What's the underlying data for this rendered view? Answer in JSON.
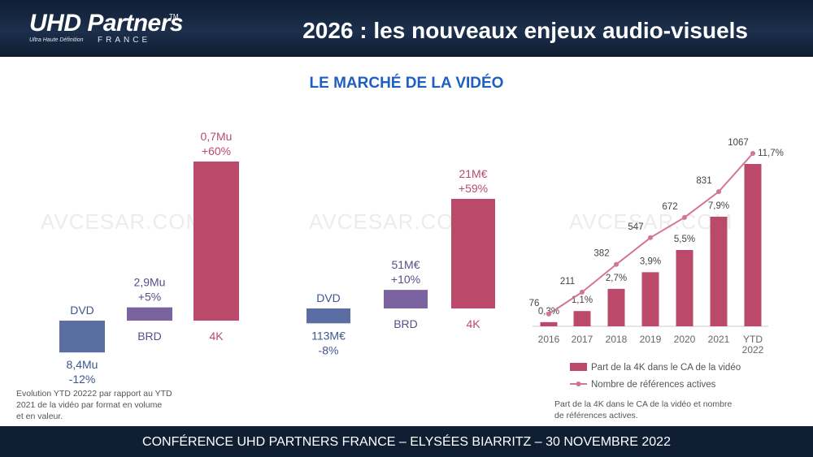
{
  "header": {
    "logo": "UHD Partners",
    "logo_tm": "TM",
    "logo_sub": "Ultra Haute Définition",
    "logo_country": "FRANCE",
    "title": "2026 : les nouveaux enjeux audio-visuels"
  },
  "section_title": "LE MARCHÉ DE LA VIDÉO",
  "watermark": "AVCESAR.COM",
  "footer": "CONFÉRENCE UHD PARTNERS FRANCE – ELYSÉES BIARRITZ – 30 NOVEMBRE 2022",
  "notes": {
    "left_line1": "Evolution YTD 20222  par rapport au YTD",
    "left_line2": "2021 de la vidéo par format en volume",
    "left_line3": "et en valeur.",
    "right_line1": "Part de la 4K dans le CA de la vidéo et nombre",
    "right_line2": "de références actives."
  },
  "colors": {
    "dvd": "#5a6ea3",
    "brd": "#7b63a0",
    "k4": "#bb4a6a",
    "brd_label": "#5a4d8a",
    "dvd_label": "#3f5590"
  },
  "chart_data": [
    {
      "type": "bar",
      "categories": [
        "DVD",
        "BRD",
        "4K"
      ],
      "values": [
        -12,
        5,
        60
      ],
      "value_labels": [
        "8,4Mu",
        "2,9Mu",
        "0,7Mu"
      ],
      "change_labels": [
        "-12%",
        "+5%",
        "+60%"
      ]
    },
    {
      "type": "bar",
      "categories": [
        "DVD",
        "BRD",
        "4K"
      ],
      "values": [
        -8,
        10,
        59
      ],
      "value_labels": [
        "113M€",
        "51M€",
        "21M€"
      ],
      "change_labels": [
        "-8%",
        "+10%",
        "+59%"
      ]
    },
    {
      "type": "bar",
      "categories": [
        "2016",
        "2017",
        "2018",
        "2019",
        "2020",
        "2021",
        "YTD 2022"
      ],
      "series": [
        {
          "name": "Part de la 4K dans le CA de la vidéo",
          "type": "bar",
          "values": [
            0.3,
            1.1,
            2.7,
            3.9,
            5.5,
            7.9,
            11.7
          ],
          "labels": [
            "0,3%",
            "1,1%",
            "2,7%",
            "3,9%",
            "5,5%",
            "7,9%",
            "11,7%"
          ]
        },
        {
          "name": "Nombre de références actives",
          "type": "line",
          "values": [
            76,
            211,
            382,
            547,
            672,
            831,
            1067
          ]
        }
      ]
    }
  ]
}
